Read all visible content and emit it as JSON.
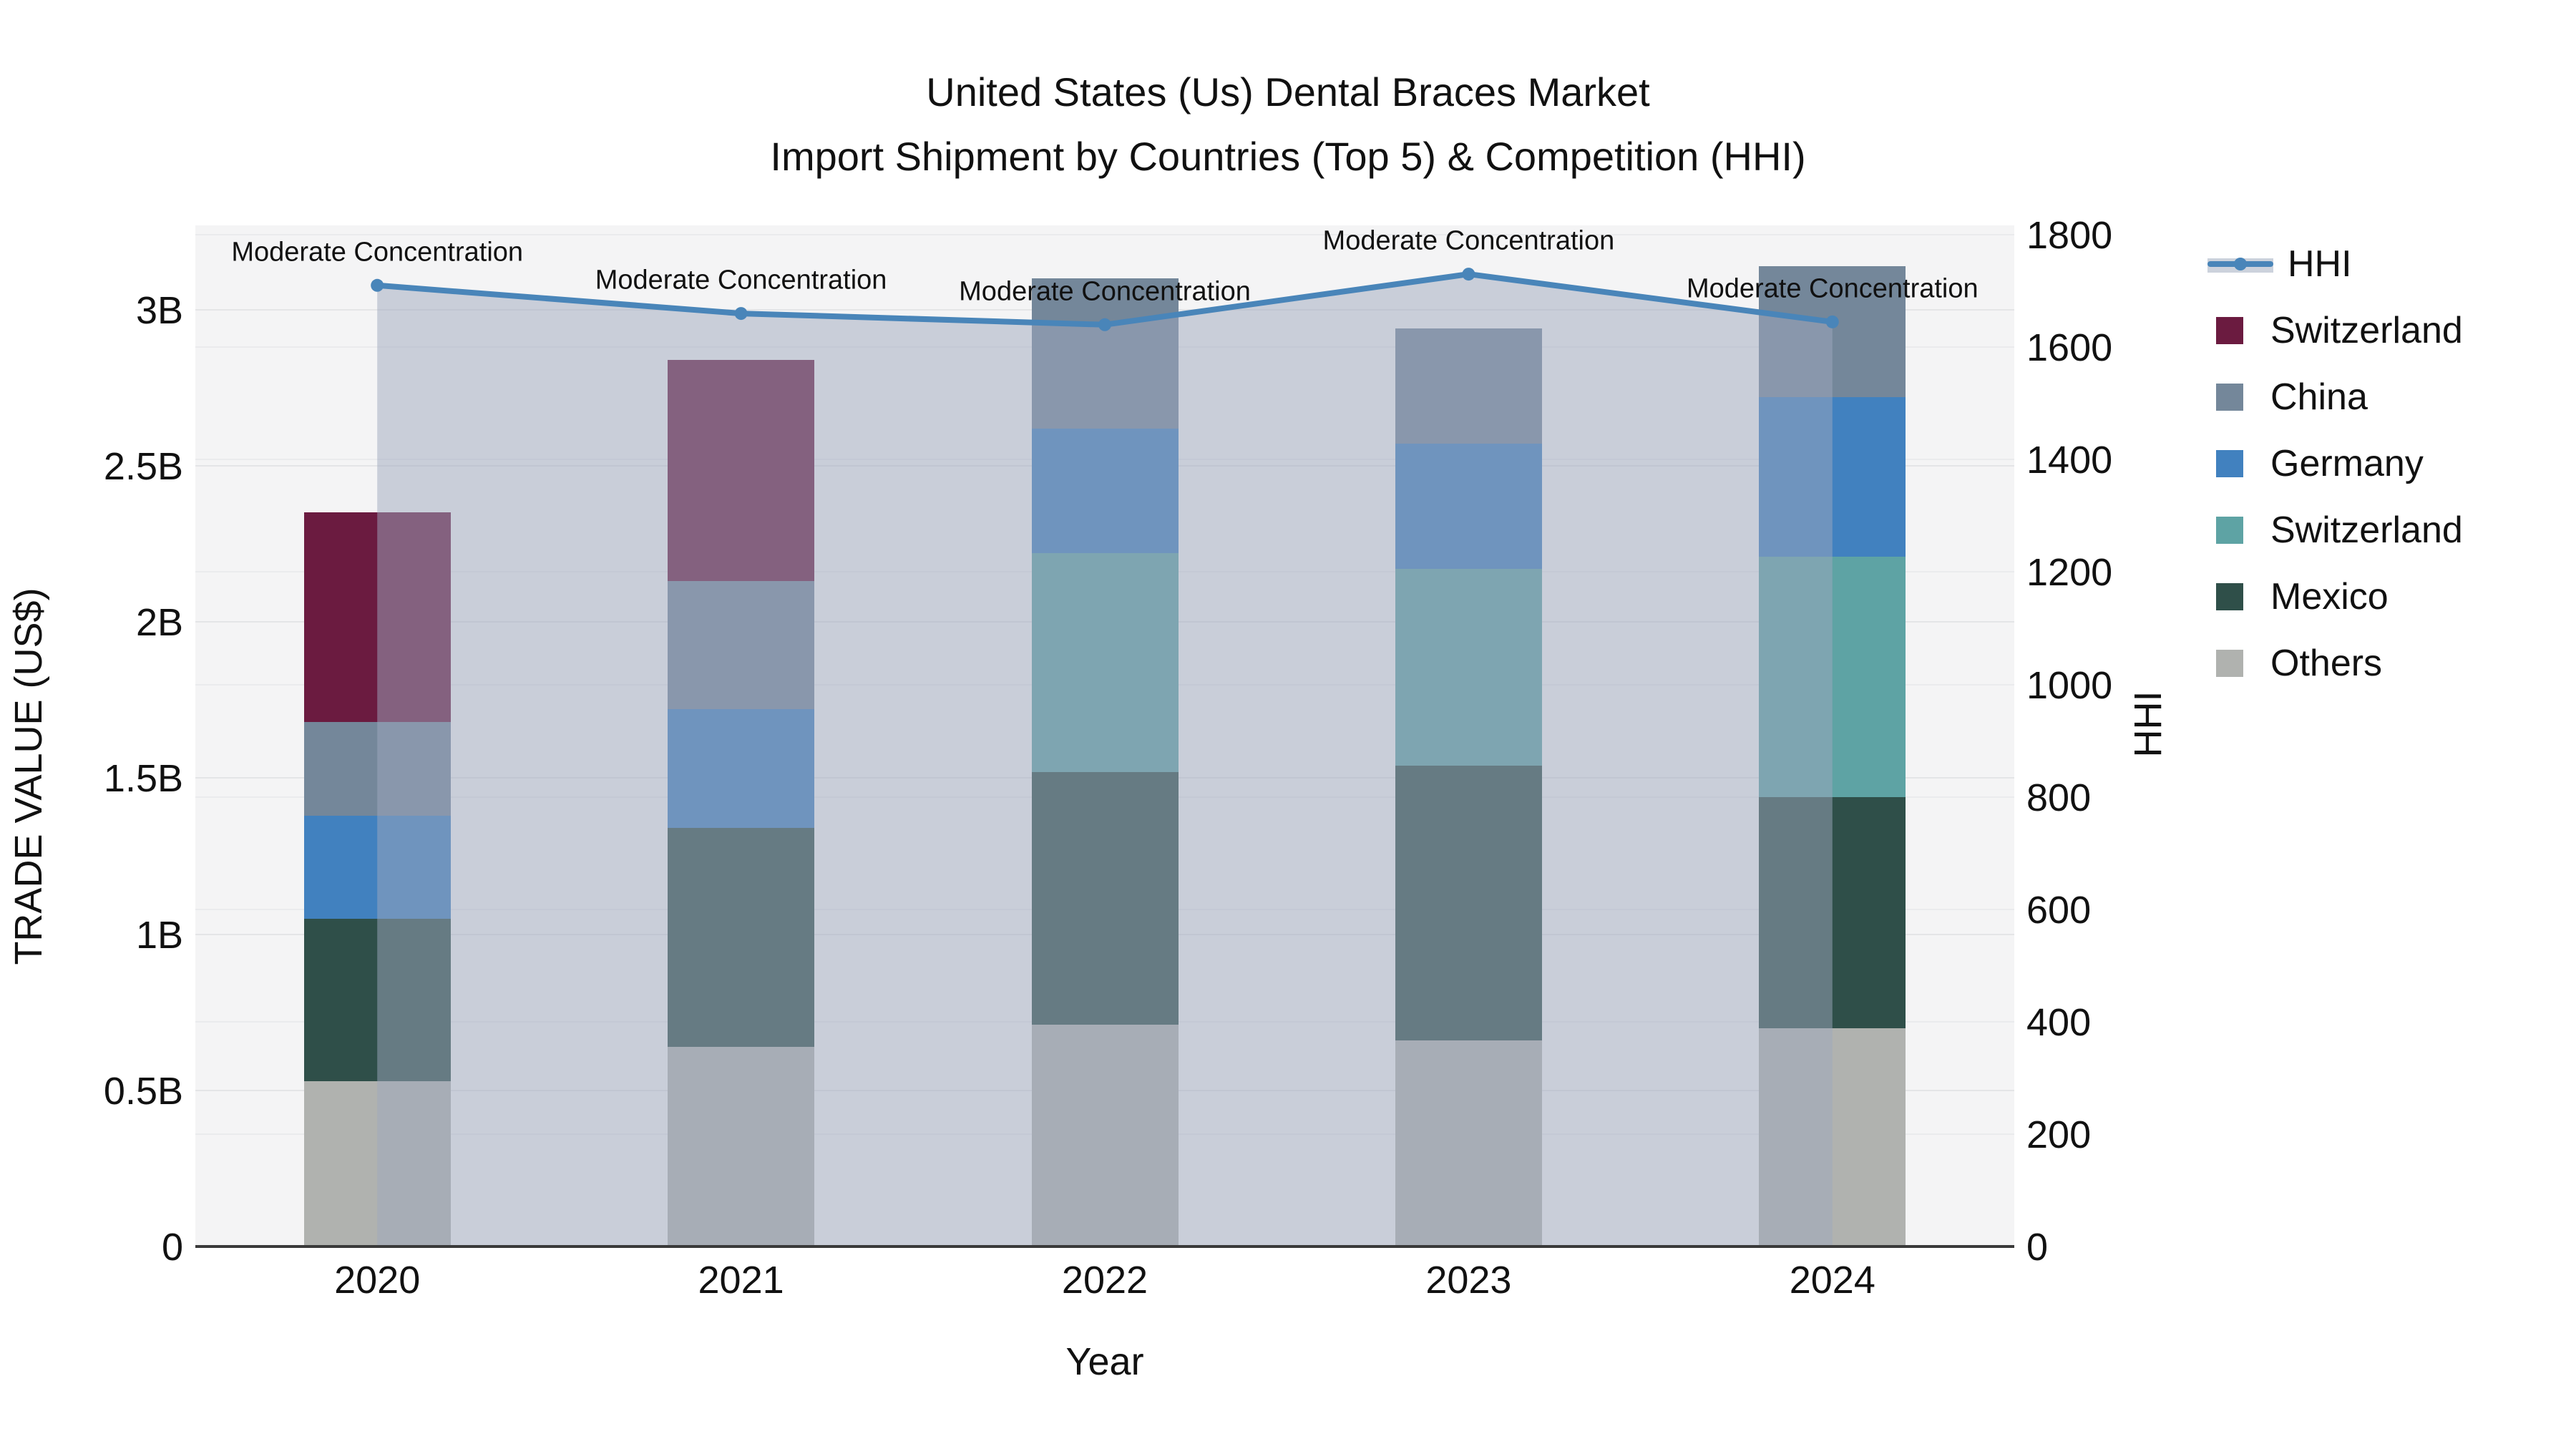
{
  "title": {
    "line1": "United States (Us) Dental Braces Market",
    "line2": "Import Shipment by Countries (Top 5) & Competition (HHI)"
  },
  "colors": {
    "hhi_line": "#4985b9",
    "hhi_fill_base": "#9ea8be",
    "hhi_fill_opacity": 0.5,
    "switzerland_maroon": "#6b1b40",
    "china": "#74879a",
    "germany": "#4181bf",
    "switzerland_teal": "#5ea3a4",
    "mexico": "#2f4f49",
    "others": "#b0b2af",
    "plot_bg": "#f4f4f5",
    "grid": "#e4e5e7",
    "axis_line": "#3a3a3a",
    "text": "#111111"
  },
  "legend": [
    {
      "label": "HHI",
      "type": "line",
      "color_key": "hhi_line"
    },
    {
      "label": "Switzerland",
      "type": "swatch",
      "color_key": "switzerland_maroon"
    },
    {
      "label": "China",
      "type": "swatch",
      "color_key": "china"
    },
    {
      "label": "Germany",
      "type": "swatch",
      "color_key": "germany"
    },
    {
      "label": "Switzerland",
      "type": "swatch",
      "color_key": "switzerland_teal"
    },
    {
      "label": "Mexico",
      "type": "swatch",
      "color_key": "mexico"
    },
    {
      "label": "Others",
      "type": "swatch",
      "color_key": "others"
    }
  ],
  "chart_data": {
    "type": "bar",
    "subtype": "stacked-bar-with-line-area",
    "title": "United States (Us) Dental Braces Market — Import Shipment by Countries (Top 5) & Competition (HHI)",
    "categories": [
      "2020",
      "2021",
      "2022",
      "2023",
      "2024"
    ],
    "bar_value_unit": "billions USD",
    "series": [
      {
        "name": "Others",
        "color_key": "others",
        "values": [
          0.53,
          0.64,
          0.71,
          0.66,
          0.7
        ]
      },
      {
        "name": "Mexico",
        "color_key": "mexico",
        "values": [
          0.52,
          0.7,
          0.81,
          0.88,
          0.74
        ]
      },
      {
        "name": "Switzerland",
        "color_key": "switzerland_teal",
        "values": [
          0.0,
          0.0,
          0.7,
          0.63,
          0.77
        ]
      },
      {
        "name": "Germany",
        "color_key": "germany",
        "values": [
          0.33,
          0.38,
          0.4,
          0.4,
          0.51
        ]
      },
      {
        "name": "China",
        "color_key": "china",
        "values": [
          0.3,
          0.41,
          0.48,
          0.37,
          0.42
        ]
      },
      {
        "name": "Switzerland",
        "color_key": "switzerland_maroon",
        "values": [
          0.67,
          0.71,
          0.0,
          0.0,
          0.0
        ]
      }
    ],
    "bar_totals": [
      2.35,
      2.84,
      3.1,
      2.94,
      3.14
    ],
    "line_series": {
      "name": "HHI",
      "axis": "right",
      "values": [
        1710,
        1660,
        1640,
        1730,
        1645
      ],
      "area_fill": true
    },
    "annotations": [
      {
        "x": "2020",
        "text": "Moderate Concentration"
      },
      {
        "x": "2021",
        "text": "Moderate Concentration"
      },
      {
        "x": "2022",
        "text": "Moderate Concentration"
      },
      {
        "x": "2023",
        "text": "Moderate Concentration"
      },
      {
        "x": "2024",
        "text": "Moderate Concentration"
      }
    ],
    "x_axis": {
      "label": "Year",
      "ticks": [
        "2020",
        "2021",
        "2022",
        "2023",
        "2024"
      ]
    },
    "y_axis_left": {
      "label": "TRADE VALUE (US$)",
      "ticks": [
        "0",
        "0.5B",
        "1B",
        "1.5B",
        "2B",
        "2.5B",
        "3B"
      ],
      "tick_values": [
        0,
        0.5,
        1,
        1.5,
        2,
        2.5,
        3
      ],
      "range": [
        0,
        3.27
      ]
    },
    "y_axis_right": {
      "label": "HHI",
      "ticks": [
        "0",
        "200",
        "400",
        "600",
        "800",
        "1000",
        "1200",
        "1400",
        "1600",
        "1800"
      ],
      "tick_values": [
        0,
        200,
        400,
        600,
        800,
        1000,
        1200,
        1400,
        1600,
        1800
      ],
      "range": [
        0,
        1817
      ]
    },
    "grid": true,
    "legend_position": "right-outside"
  }
}
